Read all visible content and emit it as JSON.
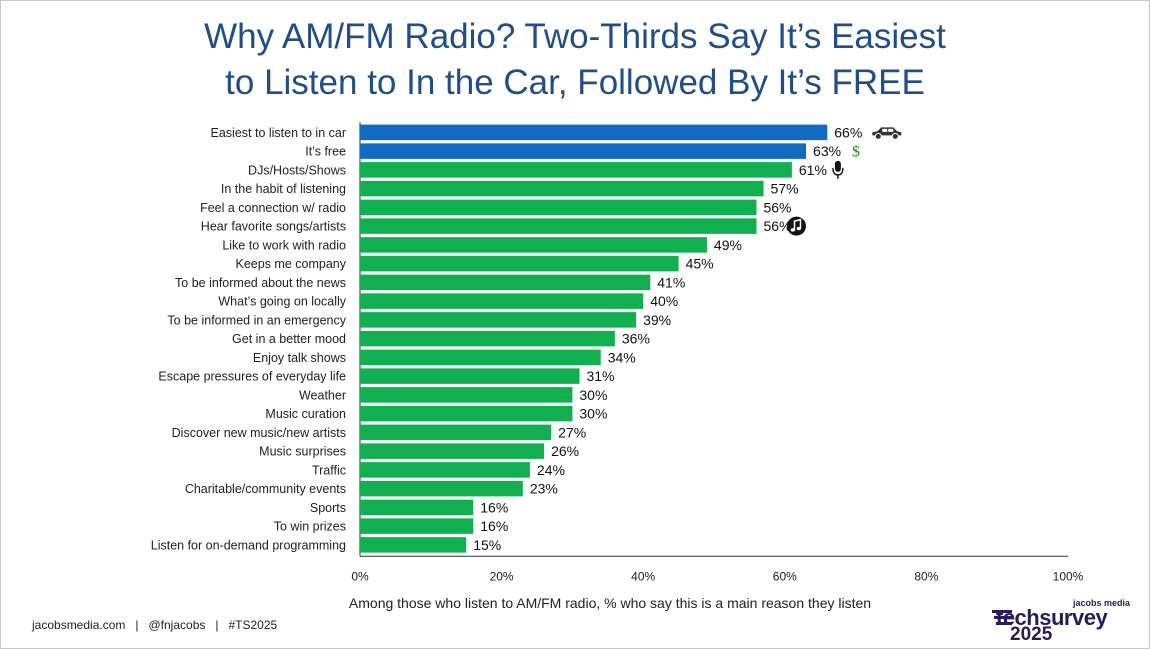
{
  "chart_data": {
    "type": "bar",
    "orientation": "horizontal",
    "title": "Why AM/FM Radio? Two-Thirds Say It’s Easiest to Listen to In the Car, Followed By It’s FREE",
    "title_lines": [
      "Why AM/FM Radio? Two-Thirds Say It’s Easiest",
      "to Listen to In the Car, Followed By It’s FREE"
    ],
    "xlabel": "Among those who listen to AM/FM radio, % who say this is a main reason they listen",
    "xlim": [
      0,
      100
    ],
    "xticks": [
      "0%",
      "20%",
      "40%",
      "60%",
      "80%",
      "100%"
    ],
    "grid": false,
    "legend": "none",
    "categories": [
      "Easiest to listen to in car",
      "It’s free",
      "DJs/Hosts/Shows",
      "In the habit of listening",
      "Feel a connection w/ radio",
      "Hear favorite songs/artists",
      "Like to work with radio",
      "Keeps me company",
      "To be informed about the news",
      "What’s going on locally",
      "To be informed in an emergency",
      "Get in a better mood",
      "Enjoy talk shows",
      "Escape pressures of everyday life",
      "Weather",
      "Music curation",
      "Discover new music/new artists",
      "Music surprises",
      "Traffic",
      "Charitable/community events",
      "Sports",
      "To win prizes",
      "Listen for on-demand programming"
    ],
    "values": [
      66,
      63,
      61,
      57,
      56,
      56,
      49,
      45,
      41,
      40,
      39,
      36,
      34,
      31,
      30,
      30,
      27,
      26,
      24,
      23,
      16,
      16,
      15
    ],
    "value_labels": [
      "66%",
      "63%",
      "61%",
      "57%",
      "56%",
      "56%",
      "49%",
      "45%",
      "41%",
      "40%",
      "39%",
      "36%",
      "34%",
      "31%",
      "30%",
      "30%",
      "27%",
      "26%",
      "24%",
      "23%",
      "16%",
      "16%",
      "15%"
    ],
    "bar_colors": [
      "#0f6cc2",
      "#0f6cc2",
      "#10b050",
      "#10b050",
      "#10b050",
      "#10b050",
      "#10b050",
      "#10b050",
      "#10b050",
      "#10b050",
      "#10b050",
      "#10b050",
      "#10b050",
      "#10b050",
      "#10b050",
      "#10b050",
      "#10b050",
      "#10b050",
      "#10b050",
      "#10b050",
      "#10b050",
      "#10b050",
      "#10b050"
    ],
    "annotations": [
      {
        "index": 0,
        "icon": "car-icon"
      },
      {
        "index": 1,
        "icon": "dollar-icon",
        "text": "$"
      },
      {
        "index": 2,
        "icon": "microphone-icon"
      },
      {
        "index": 5,
        "icon": "music-note-icon"
      }
    ]
  },
  "footer": "jacobsmedia.com   |   @fnjacobs   |   #TS2025",
  "logo": {
    "small": "jacobs media",
    "big": "techsurvey",
    "year": "2025"
  },
  "colors": {
    "title": "#1f4e8c",
    "highlight_bar": "#0f6cc2",
    "bar": "#10b050",
    "dollar": "#1e8c2a"
  }
}
